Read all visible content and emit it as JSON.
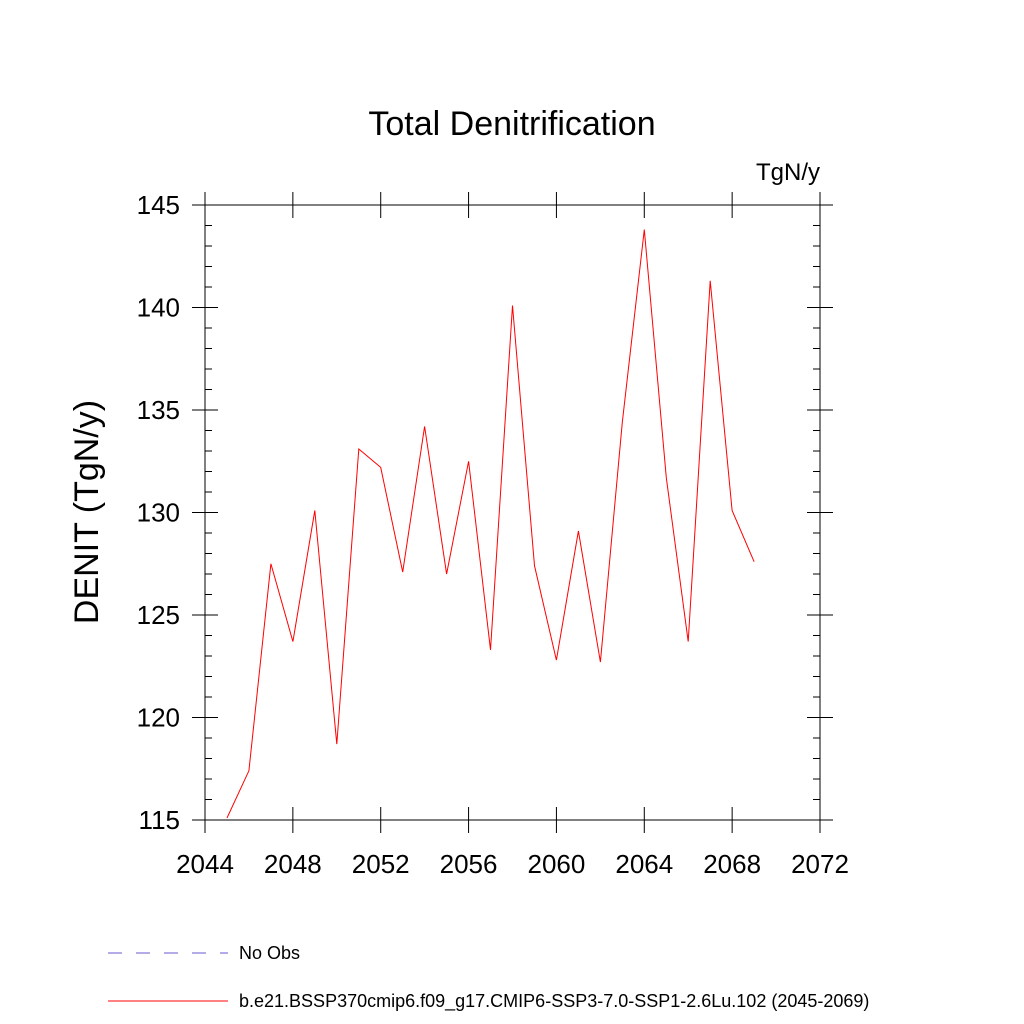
{
  "chart_data": {
    "type": "line",
    "title": "Total Denitrification",
    "units_label": "TgN/y",
    "ylabel": "DENIT  (TgN/y)",
    "xlabel": "",
    "xlim": [
      2044,
      2072
    ],
    "ylim": [
      115,
      145
    ],
    "x_ticks": [
      2044,
      2048,
      2052,
      2056,
      2060,
      2064,
      2068,
      2072
    ],
    "y_ticks": [
      115,
      120,
      125,
      130,
      135,
      140,
      145
    ],
    "grid": false,
    "series": [
      {
        "name": "b.e21.BSSP370cmip6.f09_g17.CMIP6-SSP3-7.0-SSP1-2.6Lu.102 (2045-2069)",
        "color": "#ff0000",
        "x": [
          2045,
          2046,
          2047,
          2048,
          2049,
          2050,
          2051,
          2052,
          2053,
          2054,
          2055,
          2056,
          2057,
          2058,
          2059,
          2060,
          2061,
          2062,
          2063,
          2064,
          2065,
          2066,
          2067,
          2068,
          2069
        ],
        "y": [
          115.1,
          117.4,
          127.5,
          123.7,
          130.1,
          118.7,
          133.1,
          132.2,
          127.1,
          134.2,
          127.0,
          132.5,
          123.3,
          140.1,
          127.4,
          122.8,
          129.1,
          122.7,
          134.4,
          143.8,
          131.7,
          123.7,
          141.3,
          130.1,
          127.6
        ]
      }
    ],
    "legend": {
      "placement": "bottom",
      "entries": [
        {
          "label": "No Obs",
          "color": "#6a5acd",
          "style": "dashed"
        },
        {
          "label": "b.e21.BSSP370cmip6.f09_g17.CMIP6-SSP3-7.0-SSP1-2.6Lu.102 (2045-2069)",
          "color": "#ff0000",
          "style": "solid"
        }
      ]
    }
  }
}
